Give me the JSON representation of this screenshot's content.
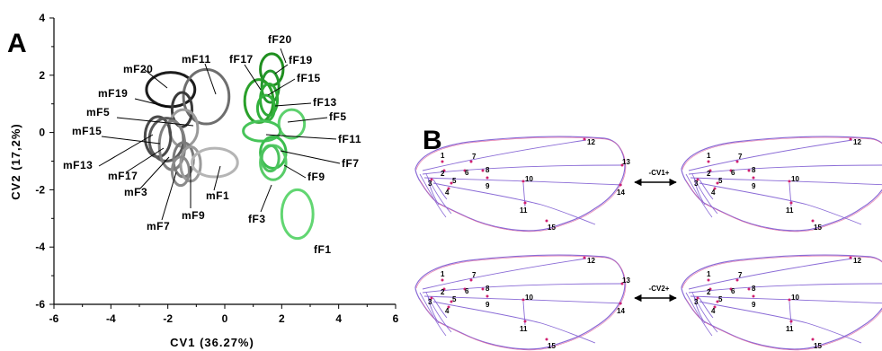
{
  "panel_a": {
    "letter": "A",
    "chart_data": {
      "type": "scatter",
      "xlabel": "CV1 (36.27%)",
      "ylabel": "CV2 (17,2%)",
      "xlim": [
        -6,
        6
      ],
      "ylim": [
        -6,
        4
      ],
      "x_ticks": [
        "-6",
        "-4",
        "-2",
        "0",
        "2",
        "4",
        "6"
      ],
      "y_ticks": [
        "-6",
        "-4",
        "-2",
        "0",
        "2",
        "4"
      ],
      "grid": false,
      "series": [
        {
          "name": "mF20",
          "cx": -1.9,
          "cy": 1.5,
          "rx": 0.85,
          "ry": 0.6,
          "color": "#1c1c1c"
        },
        {
          "name": "mF11",
          "cx": -0.65,
          "cy": 1.25,
          "rx": 0.8,
          "ry": 0.95,
          "color": "#6e6e6e"
        },
        {
          "name": "mF19",
          "cx": -1.5,
          "cy": 0.8,
          "rx": 0.35,
          "ry": 0.6,
          "color": "#3a3a3a"
        },
        {
          "name": "mF5",
          "cx": -1.45,
          "cy": 0.15,
          "rx": 0.5,
          "ry": 0.65,
          "color": "#9a9a9a"
        },
        {
          "name": "mF15",
          "cx": -2.35,
          "cy": -0.15,
          "rx": 0.45,
          "ry": 0.7,
          "color": "#4a4a4a"
        },
        {
          "name": "mF13",
          "cx": -2.05,
          "cy": -0.25,
          "rx": 0.6,
          "ry": 0.75,
          "color": "#5a5a5a"
        },
        {
          "name": "mF17",
          "cx": -1.85,
          "cy": -0.45,
          "rx": 0.45,
          "ry": 0.85,
          "color": "#808080"
        },
        {
          "name": "mF3",
          "cx": -1.45,
          "cy": -0.95,
          "rx": 0.35,
          "ry": 0.6,
          "color": "#7a7a7a"
        },
        {
          "name": "mF9",
          "cx": -1.2,
          "cy": -1.1,
          "rx": 0.35,
          "ry": 0.6,
          "color": "#9a9a9a"
        },
        {
          "name": "mF1",
          "cx": -0.35,
          "cy": -1.05,
          "rx": 0.8,
          "ry": 0.5,
          "color": "#b5b5b5"
        },
        {
          "name": "mF7",
          "cx": -1.55,
          "cy": -1.35,
          "rx": 0.3,
          "ry": 0.5,
          "color": "#8a8a8a"
        },
        {
          "name": "fF20",
          "cx": 1.65,
          "cy": 2.2,
          "rx": 0.4,
          "ry": 0.55,
          "color": "#1f8f1f"
        },
        {
          "name": "fF17",
          "cx": 1.2,
          "cy": 1.1,
          "rx": 0.5,
          "ry": 0.75,
          "color": "#2aa02a"
        },
        {
          "name": "fF19",
          "cx": 1.6,
          "cy": 1.6,
          "rx": 0.3,
          "ry": 0.55,
          "color": "#23972c"
        },
        {
          "name": "fF15",
          "cx": 1.55,
          "cy": 1.15,
          "rx": 0.3,
          "ry": 0.55,
          "color": "#2eaa36"
        },
        {
          "name": "fF13",
          "cx": 1.45,
          "cy": 0.85,
          "rx": 0.3,
          "ry": 0.45,
          "color": "#33b13d"
        },
        {
          "name": "fF5",
          "cx": 2.35,
          "cy": 0.3,
          "rx": 0.45,
          "ry": 0.5,
          "color": "#5dd16d"
        },
        {
          "name": "fF11",
          "cx": 1.3,
          "cy": 0.05,
          "rx": 0.65,
          "ry": 0.35,
          "color": "#47c459"
        },
        {
          "name": "fF7",
          "cx": 1.7,
          "cy": -0.7,
          "rx": 0.45,
          "ry": 0.55,
          "color": "#3bbd4e"
        },
        {
          "name": "fF9",
          "cx": 1.7,
          "cy": -1.05,
          "rx": 0.45,
          "ry": 0.6,
          "color": "#58cc68"
        },
        {
          "name": "fF3",
          "cx": 1.6,
          "cy": -0.9,
          "rx": 0.3,
          "ry": 0.45,
          "color": "#4cc35e"
        },
        {
          "name": "fF1",
          "cx": 2.55,
          "cy": -2.85,
          "rx": 0.55,
          "ry": 0.85,
          "color": "#62d672"
        }
      ]
    }
  },
  "panel_b": {
    "letter": "B",
    "landmarks": [
      "1",
      "2",
      "3",
      "4",
      "5",
      "6",
      "7",
      "8",
      "9",
      "10",
      "11",
      "12",
      "13",
      "14",
      "15"
    ],
    "cv1_label": "-CV1+",
    "cv2_label": "-CV2+"
  }
}
